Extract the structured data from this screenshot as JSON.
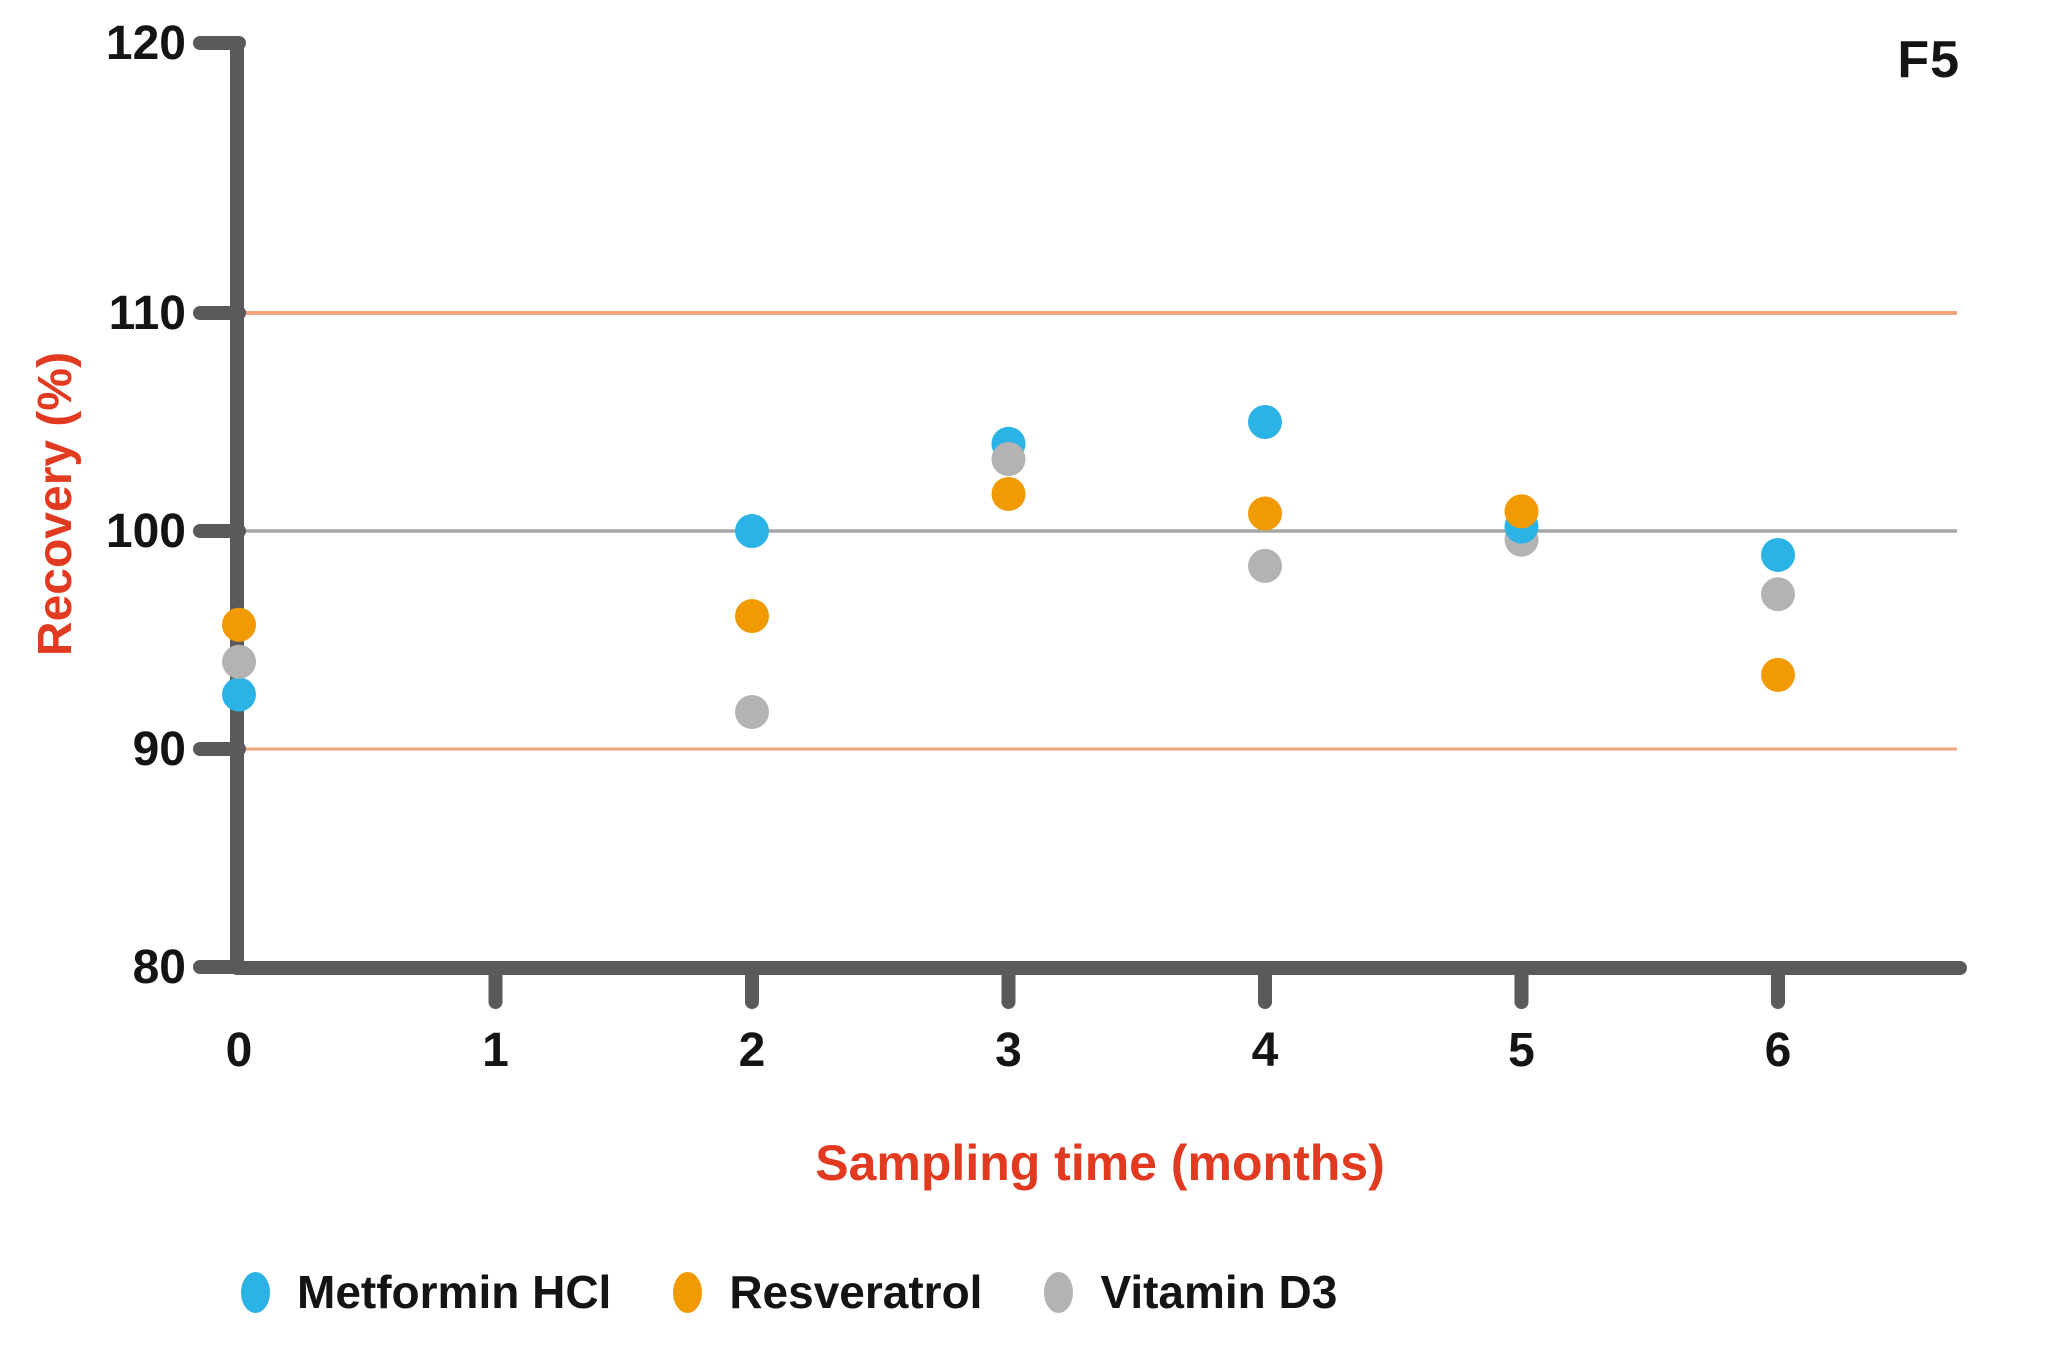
{
  "figure": {
    "panel_label": "F5",
    "background_color": "#ffffff"
  },
  "chart_data": {
    "type": "scatter",
    "title": "F5",
    "xlabel": "Sampling time (months)",
    "ylabel": "Recovery (%)",
    "xlim": [
      0,
      6.7
    ],
    "ylim": [
      80,
      120
    ],
    "xticks": [
      0,
      1,
      2,
      3,
      4,
      5,
      6
    ],
    "yticks": [
      80,
      90,
      100,
      110,
      120
    ],
    "grid": false,
    "legend_position": "bottom",
    "x_months": [
      0,
      2,
      3,
      4,
      5,
      6
    ],
    "series": [
      {
        "name": "Metformin HCl",
        "color": "#2CB3E5",
        "values": [
          92.5,
          100.0,
          104.0,
          105.0,
          100.2,
          98.9
        ]
      },
      {
        "name": "Resveratrol",
        "color": "#F29A02",
        "values": [
          95.7,
          96.1,
          101.7,
          100.8,
          100.9,
          93.4
        ]
      },
      {
        "name": "Vitamin D3",
        "color": "#B3B3B3",
        "values": [
          94.0,
          91.7,
          103.3,
          98.4,
          99.6,
          97.1
        ]
      }
    ],
    "reference_lines": [
      {
        "y": 110,
        "color": "#F2A47C",
        "role": "upper-limit"
      },
      {
        "y": 100,
        "color": "#A6A6A6",
        "role": "target"
      },
      {
        "y": 90,
        "color": "#F2A47C",
        "role": "lower-limit"
      }
    ],
    "colors": {
      "axis": "#5A5A5C",
      "tick_labels": "#141414",
      "axis_titles": "#E23A20"
    }
  }
}
